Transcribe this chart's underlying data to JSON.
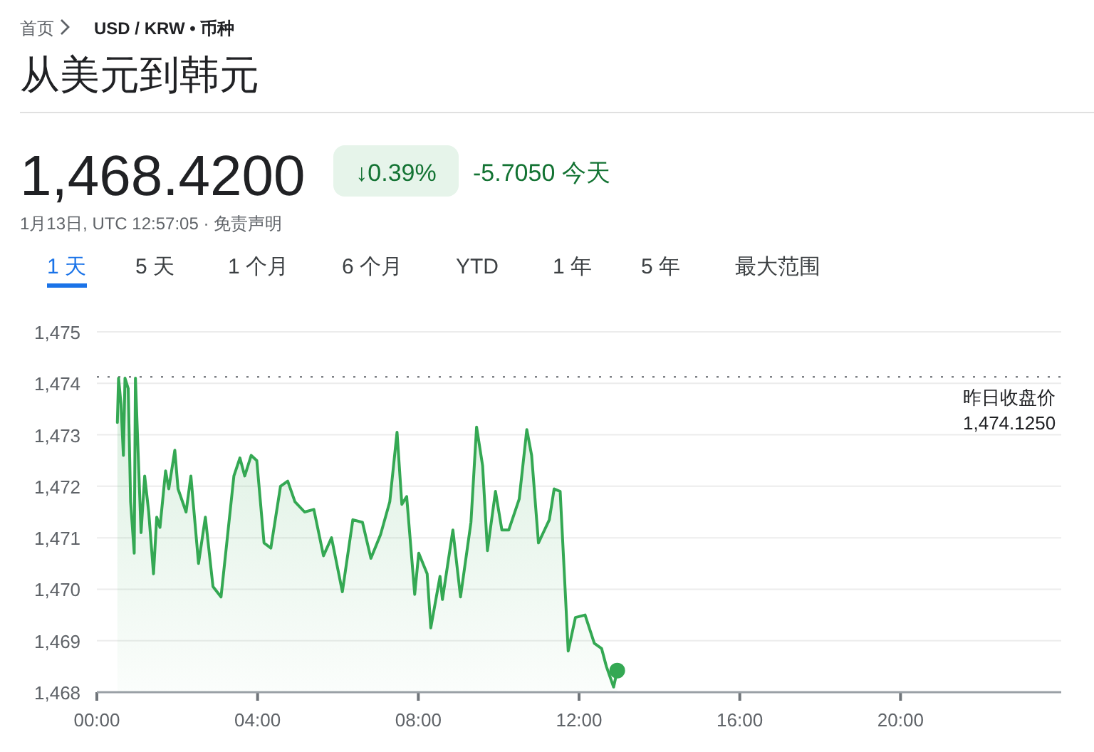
{
  "chart_data": {
    "type": "area",
    "title": "从美元到韩元",
    "subtitle": "1月13日, UTC 12:57:05 · 免责声明",
    "annotations": [
      "首页",
      "USD / KRW • 币种",
      "1,468.4200",
      "↓0.39%",
      "-5.7050 今天",
      "1 天",
      "5 天",
      "1 个月",
      "6 个月",
      "YTD",
      "1 年",
      "5 年",
      "最大范围"
    ],
    "xlim": [
      0,
      24
    ],
    "ylim": [
      1468,
      1475
    ],
    "xticks": [
      {
        "value": 0,
        "label": "00:00"
      },
      {
        "value": 4,
        "label": "04:00"
      },
      {
        "value": 8,
        "label": "08:00"
      },
      {
        "value": 12,
        "label": "12:00"
      },
      {
        "value": 16,
        "label": "16:00"
      },
      {
        "value": 20,
        "label": "20:00"
      }
    ],
    "yticks": [
      {
        "value": 1468,
        "label": "1,468"
      },
      {
        "value": 1469,
        "label": "1,469"
      },
      {
        "value": 1470,
        "label": "1,470"
      },
      {
        "value": 1471,
        "label": "1,471"
      },
      {
        "value": 1472,
        "label": "1,472"
      },
      {
        "value": 1473,
        "label": "1,473"
      },
      {
        "value": 1474,
        "label": "1,474"
      },
      {
        "value": 1475,
        "label": "1,475"
      }
    ],
    "grid": "y",
    "ref_lines": [
      {
        "axis": "y",
        "value": 1474.125,
        "label": "昨日收盘价 1,474.1250",
        "line_style": "dotted",
        "color": "#5f6368"
      }
    ],
    "series": [
      {
        "color": "#34a853",
        "x": [
          0.51,
          0.54,
          0.6,
          0.66,
          0.7,
          0.78,
          0.84,
          0.93,
          0.96,
          1.02,
          1.1,
          1.19,
          1.29,
          1.41,
          1.49,
          1.57,
          1.71,
          1.79,
          1.94,
          2.02,
          2.22,
          2.34,
          2.53,
          2.7,
          2.89,
          3.09,
          3.24,
          3.41,
          3.56,
          3.68,
          3.84,
          3.98,
          4.16,
          4.33,
          4.57,
          4.75,
          4.93,
          5.17,
          5.4,
          5.64,
          5.84,
          6.11,
          6.37,
          6.61,
          6.82,
          7.06,
          7.29,
          7.47,
          7.59,
          7.71,
          7.91,
          8.01,
          8.22,
          8.31,
          8.54,
          8.6,
          8.86,
          9.05,
          9.31,
          9.45,
          9.6,
          9.72,
          9.92,
          10.08,
          10.25,
          10.51,
          10.7,
          10.82,
          10.99,
          11.26,
          11.38,
          11.53,
          11.65,
          11.73,
          11.91,
          12.15,
          12.38,
          12.56,
          12.68,
          12.86,
          12.95
        ],
        "values": [
          1473.24,
          1474.1,
          1473.6,
          1472.6,
          1474.1,
          1473.9,
          1471.7,
          1470.7,
          1474.1,
          1472.8,
          1471.1,
          1472.2,
          1471.5,
          1470.3,
          1471.4,
          1471.2,
          1472.3,
          1471.95,
          1472.7,
          1471.95,
          1471.5,
          1472.2,
          1470.5,
          1471.4,
          1470.05,
          1469.85,
          1470.95,
          1472.2,
          1472.55,
          1472.2,
          1472.6,
          1472.5,
          1470.9,
          1470.8,
          1472.0,
          1472.1,
          1471.7,
          1471.5,
          1471.55,
          1470.65,
          1471.0,
          1469.95,
          1471.35,
          1471.3,
          1470.6,
          1471.06,
          1471.7,
          1473.05,
          1471.65,
          1471.8,
          1469.9,
          1470.7,
          1470.3,
          1469.25,
          1470.25,
          1469.8,
          1471.15,
          1469.85,
          1471.3,
          1473.15,
          1472.4,
          1470.75,
          1471.9,
          1471.15,
          1471.15,
          1471.75,
          1473.1,
          1472.6,
          1470.9,
          1471.35,
          1471.95,
          1471.9,
          1470.05,
          1468.8,
          1469.45,
          1469.5,
          1468.95,
          1468.85,
          1468.5,
          1468.1,
          1468.42
        ]
      },
      {
        "type": "scatter",
        "marker": "circle",
        "color": "#34a853",
        "x": [
          12.95
        ],
        "values": [
          1468.42
        ]
      }
    ]
  }
}
